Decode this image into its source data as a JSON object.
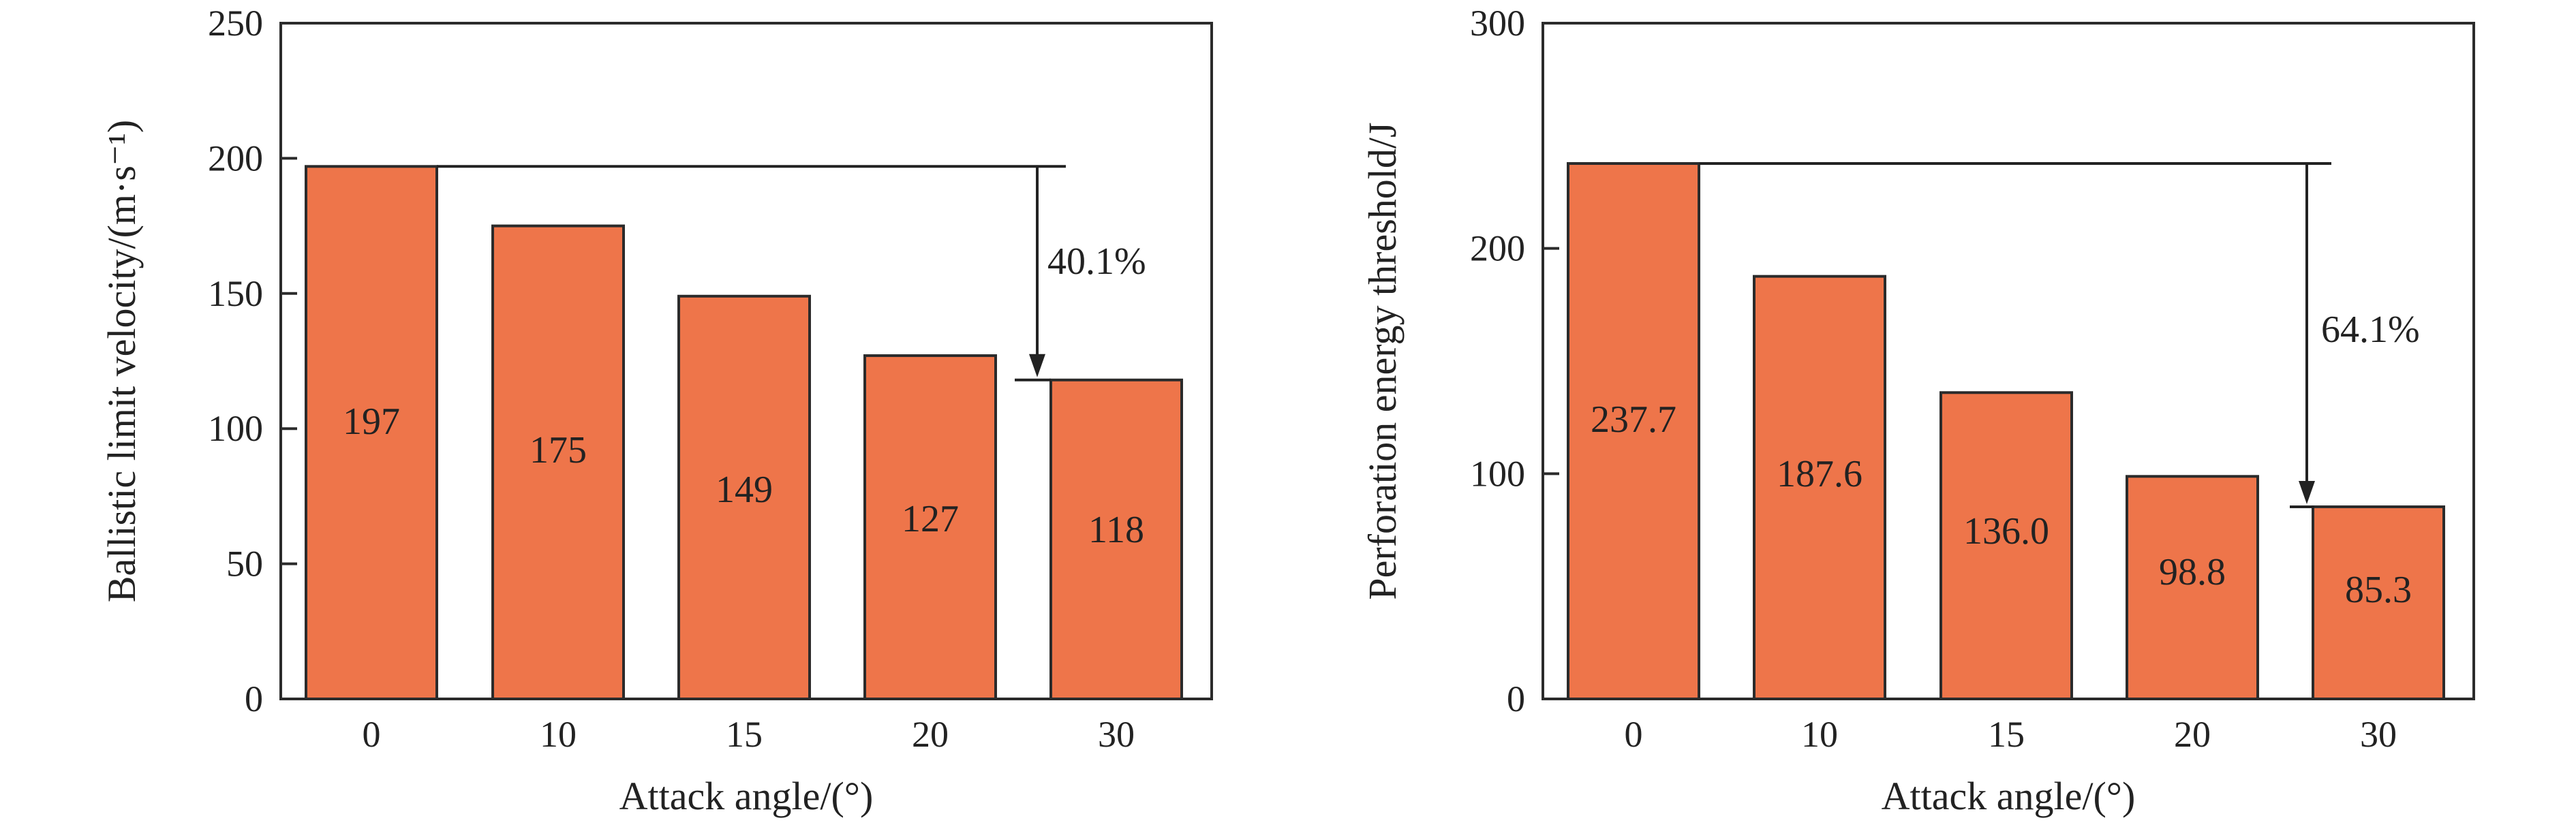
{
  "chart_data": [
    {
      "type": "bar",
      "categories": [
        "0",
        "10",
        "15",
        "20",
        "30"
      ],
      "values": [
        197,
        175,
        149,
        127,
        118
      ],
      "value_labels": [
        "197",
        "175",
        "149",
        "127",
        "118"
      ],
      "xlabel": "Attack angle/(°)",
      "ylabel": "Ballistic limit velocity/(m·s⁻¹)",
      "ylim": [
        0,
        250
      ],
      "yticks": [
        "0",
        "50",
        "100",
        "150",
        "200",
        "250"
      ],
      "ytick_values": [
        0,
        50,
        100,
        150,
        200,
        250
      ],
      "annotation": {
        "text": "40.1%",
        "from_value": 197,
        "to_value": 118
      },
      "bar_color": "#EE754A",
      "grid": false,
      "legend": "none"
    },
    {
      "type": "bar",
      "categories": [
        "0",
        "10",
        "15",
        "20",
        "30"
      ],
      "values": [
        237.7,
        187.6,
        136.0,
        98.8,
        85.3
      ],
      "value_labels": [
        "237.7",
        "187.6",
        "136.0",
        "98.8",
        "85.3"
      ],
      "xlabel": "Attack angle/(°)",
      "ylabel": "Perforation energy threshold/J",
      "ylim": [
        0,
        300
      ],
      "yticks": [
        "0",
        "100",
        "200",
        "300"
      ],
      "ytick_values": [
        0,
        100,
        200,
        300
      ],
      "annotation": {
        "text": "64.1%",
        "from_value": 237.7,
        "to_value": 85.3
      },
      "bar_color": "#EE754A",
      "grid": false,
      "legend": "none"
    }
  ]
}
